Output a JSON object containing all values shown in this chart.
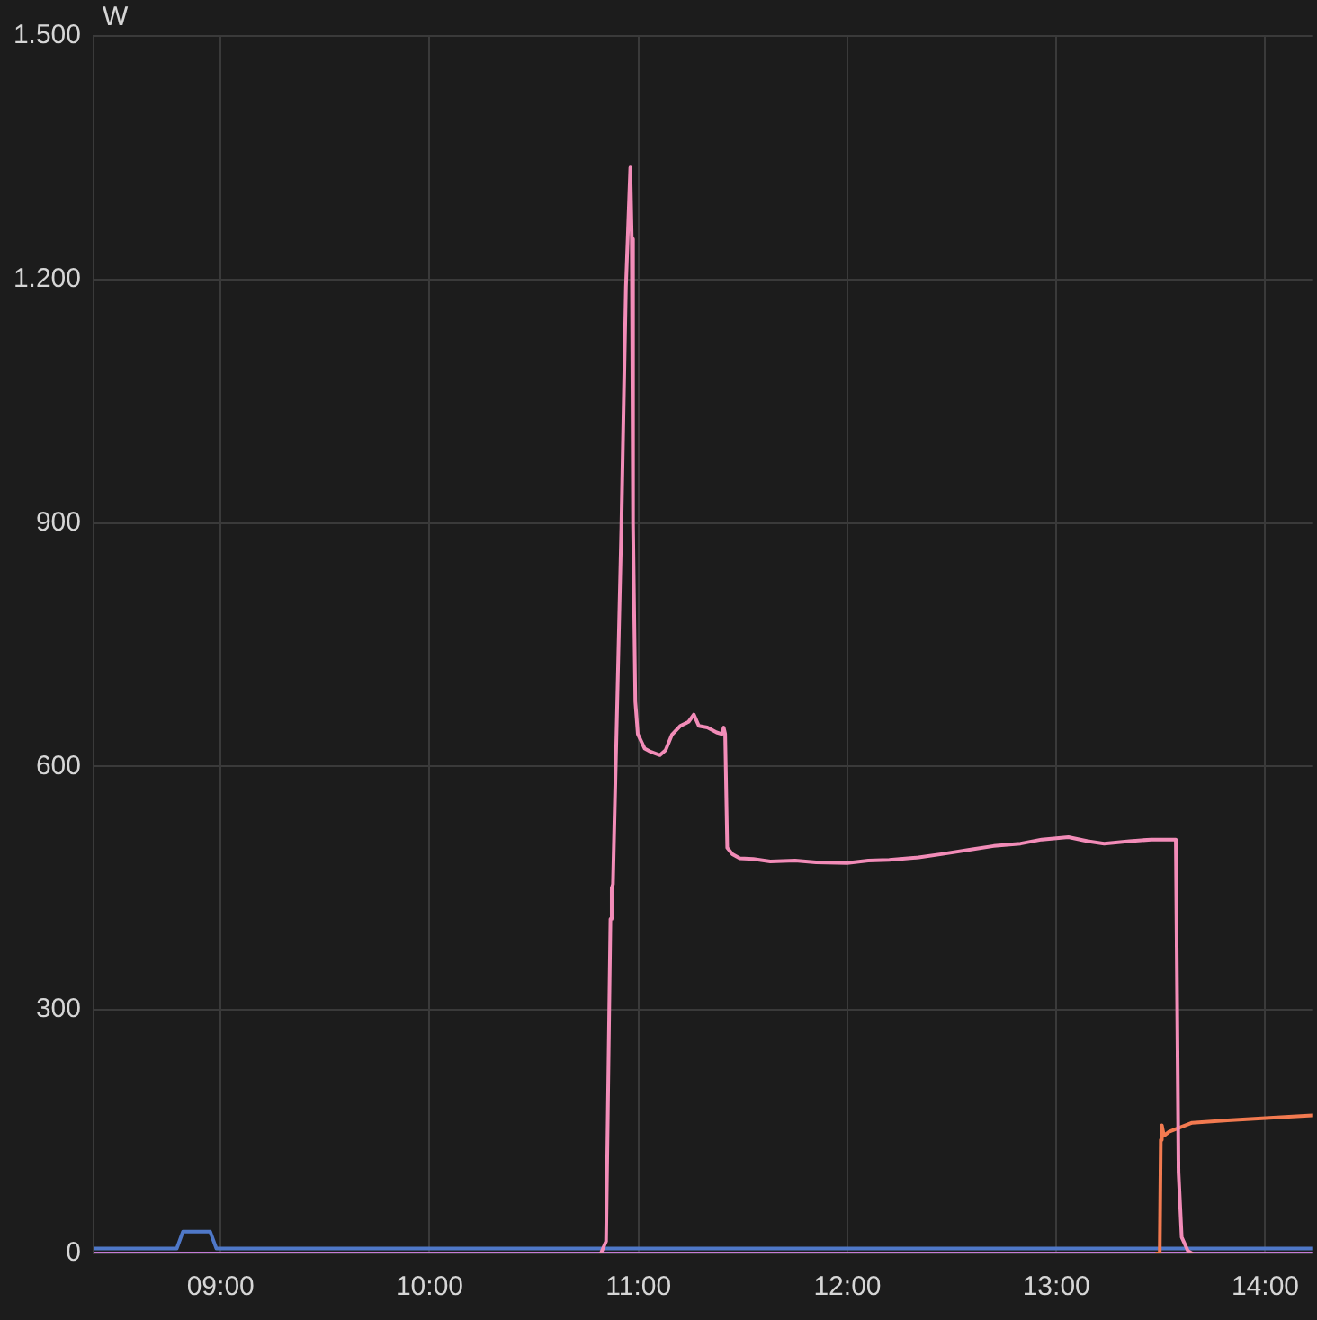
{
  "chart_data": {
    "type": "line",
    "ylabel": "W",
    "xlim": [
      8.392,
      14.225
    ],
    "xticks": [
      {
        "value": 9,
        "label": "09:00"
      },
      {
        "value": 10,
        "label": "10:00"
      },
      {
        "value": 11,
        "label": "11:00"
      },
      {
        "value": 12,
        "label": "12:00"
      },
      {
        "value": 13,
        "label": "13:00"
      },
      {
        "value": 14,
        "label": "14:00"
      }
    ],
    "ylim": [
      0,
      1500
    ],
    "yticks": [
      0,
      300,
      600,
      900,
      {
        "value": 1200,
        "label": "1.200"
      },
      {
        "value": 1500,
        "label": "1.500"
      }
    ],
    "grid": true,
    "legend": false,
    "marker": "none",
    "line_style": "solid",
    "series": [
      {
        "color": "#f28cb8",
        "x": [
          10.82,
          10.845,
          10.866,
          10.872,
          10.878,
          10.918,
          10.94,
          10.961,
          10.968,
          10.974,
          10.985,
          10.997,
          11.03,
          11.06,
          11.103,
          11.13,
          11.16,
          11.2,
          11.24,
          11.265,
          11.289,
          11.33,
          11.374,
          11.4,
          11.408,
          11.415,
          11.425,
          11.45,
          11.485,
          11.55,
          11.631,
          11.75,
          11.85,
          11.999,
          12.1,
          12.2,
          12.341,
          12.45,
          12.598,
          12.7,
          12.829,
          12.93,
          13.058,
          13.15,
          13.229,
          13.35,
          13.455,
          13.572,
          13.585,
          13.6,
          13.63,
          13.65
        ],
        "values": [
          0,
          15,
          412,
          450,
          455,
          893,
          1191,
          1338,
          1250,
          900,
          680,
          640,
          622,
          618,
          614,
          620,
          639,
          650,
          655,
          664,
          650,
          648,
          642,
          640,
          648,
          640,
          500,
          492,
          487,
          486,
          483,
          484,
          482,
          481,
          484,
          485,
          488,
          492,
          498,
          502,
          505,
          510,
          513,
          508,
          505,
          508,
          510,
          510,
          100,
          20,
          3,
          0
        ]
      },
      {
        "color": "#f27a50",
        "x": [
          13.48,
          13.495,
          13.5,
          13.505,
          13.515,
          13.54,
          13.6,
          13.65,
          13.82,
          14.02,
          14.225
        ],
        "values": [
          0,
          0,
          140,
          158,
          145,
          150,
          156,
          161,
          164,
          167,
          170
        ]
      },
      {
        "color": "#4f78c8",
        "x": [
          8.392,
          8.79,
          8.82,
          8.95,
          8.98,
          14.225
        ],
        "values": [
          6,
          6,
          27,
          27,
          6,
          6
        ]
      },
      {
        "color": "#c47ad8",
        "x": [
          8.392,
          14.225
        ],
        "values": [
          0,
          0
        ]
      }
    ]
  }
}
